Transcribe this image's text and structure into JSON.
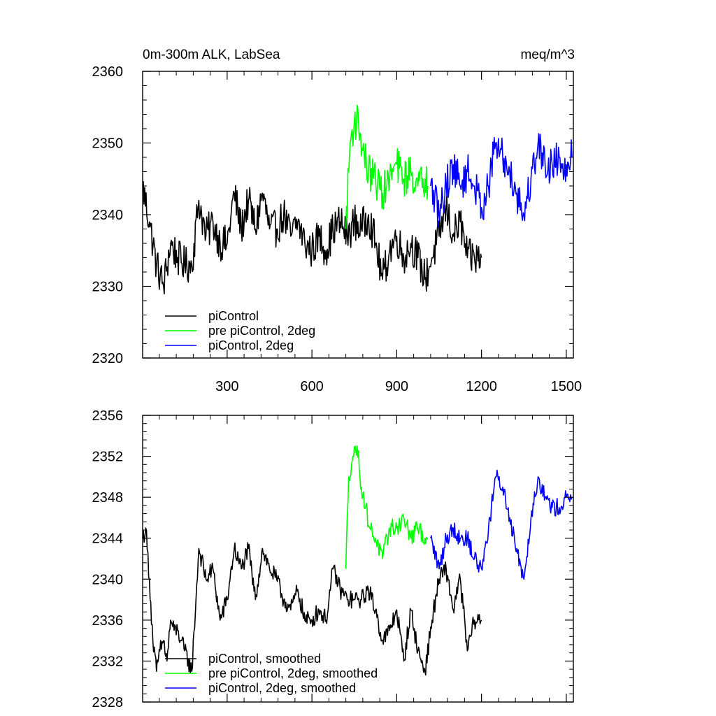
{
  "chart_data": [
    {
      "type": "line",
      "title": "0m-300m ALK, LabSea",
      "units": "meq/m^3",
      "xlabel": "",
      "ylabel": "",
      "xlim": [
        1,
        1525
      ],
      "ylim": [
        2320,
        2360
      ],
      "xticks": [
        300,
        600,
        900,
        1200,
        1500
      ],
      "xtick_labels": [
        "300",
        "600",
        "900",
        "1200",
        "1500"
      ],
      "yticks": [
        2320,
        2330,
        2340,
        2350,
        2360
      ],
      "ytick_labels": [
        "2320",
        "2330",
        "2340",
        "2350",
        "2360"
      ],
      "legend_position": "bottom-left",
      "series": [
        {
          "name": "piControl",
          "color": "#000000",
          "x": [
            1,
            25,
            50,
            75,
            100,
            125,
            150,
            175,
            200,
            225,
            250,
            275,
            300,
            325,
            350,
            375,
            400,
            425,
            450,
            475,
            500,
            525,
            550,
            575,
            600,
            625,
            650,
            675,
            700,
            725,
            750,
            775,
            800,
            825,
            850,
            875,
            900,
            925,
            950,
            975,
            1000,
            1025,
            1050,
            1075,
            1100,
            1125,
            1150,
            1175,
            1200
          ],
          "values": [
            2344,
            2339,
            2333,
            2330,
            2336,
            2334,
            2333,
            2333,
            2342,
            2337,
            2339,
            2336,
            2336,
            2343,
            2338,
            2342,
            2338,
            2343,
            2338,
            2338,
            2340,
            2337,
            2339,
            2336,
            2335,
            2337,
            2335,
            2338,
            2339,
            2337,
            2339,
            2338,
            2340,
            2336,
            2331,
            2335,
            2337,
            2334,
            2336,
            2334,
            2331,
            2334,
            2337,
            2341,
            2337,
            2339,
            2334,
            2334,
            2334
          ]
        },
        {
          "name": "pre piControl, 2deg",
          "color": "#00ff00",
          "x": [
            720,
            735,
            750,
            765,
            780,
            800,
            825,
            850,
            875,
            900,
            925,
            950,
            975,
            1000,
            1010
          ],
          "values": [
            2338,
            2350,
            2353,
            2353,
            2349,
            2346,
            2345,
            2343,
            2345,
            2347,
            2345,
            2346,
            2344,
            2345,
            2344
          ]
        },
        {
          "name": "piControl, 2deg",
          "color": "#0000ff",
          "x": [
            1020,
            1050,
            1075,
            1100,
            1125,
            1150,
            1175,
            1200,
            1225,
            1250,
            1275,
            1300,
            1325,
            1350,
            1375,
            1400,
            1425,
            1450,
            1475,
            1500,
            1520
          ],
          "values": [
            2344,
            2340,
            2344,
            2347,
            2344,
            2346,
            2344,
            2341,
            2344,
            2350,
            2348,
            2346,
            2343,
            2340,
            2345,
            2350,
            2347,
            2347,
            2348,
            2347,
            2348
          ]
        }
      ]
    },
    {
      "type": "line",
      "title": "",
      "xlabel": "",
      "ylabel": "",
      "xlim": [
        1,
        1525
      ],
      "ylim": [
        2328,
        2356
      ],
      "xticks": [
        300,
        600,
        900,
        1200,
        1500
      ],
      "xtick_labels": [],
      "yticks": [
        2328,
        2332,
        2336,
        2340,
        2344,
        2348,
        2352,
        2356
      ],
      "ytick_labels": [
        "2328",
        "2332",
        "2336",
        "2340",
        "2344",
        "2348",
        "2352",
        "2356"
      ],
      "legend_position": "bottom-left",
      "series": [
        {
          "name": "piControl, smoothed",
          "color": "#000000",
          "x": [
            1,
            12,
            25,
            37,
            50,
            62,
            75,
            87,
            100,
            112,
            125,
            137,
            150,
            175,
            200,
            225,
            250,
            275,
            300,
            325,
            350,
            375,
            400,
            425,
            450,
            475,
            500,
            525,
            550,
            575,
            600,
            625,
            650,
            675,
            700,
            725,
            750,
            775,
            800,
            825,
            850,
            875,
            900,
            925,
            950,
            975,
            1000,
            1025,
            1050,
            1075,
            1100,
            1125,
            1150,
            1175,
            1200
          ],
          "values": [
            2344,
            2345,
            2340,
            2334,
            2331,
            2333,
            2334,
            2332,
            2336,
            2335,
            2335,
            2334,
            2333,
            2331,
            2343,
            2340,
            2341,
            2336,
            2338,
            2343,
            2341,
            2343,
            2338,
            2343,
            2341,
            2340,
            2338,
            2337,
            2339,
            2336,
            2336,
            2337,
            2336,
            2341,
            2339,
            2338,
            2338,
            2338,
            2339,
            2337,
            2334,
            2335,
            2337,
            2332,
            2337,
            2333,
            2331,
            2336,
            2340,
            2341,
            2337,
            2340,
            2333,
            2336,
            2336
          ]
        },
        {
          "name": "pre piControl, 2deg, smoothed",
          "color": "#00ff00",
          "x": [
            720,
            730,
            745,
            760,
            775,
            790,
            805,
            825,
            850,
            875,
            900,
            925,
            950,
            975,
            1000,
            1010
          ],
          "values": [
            2341,
            2350,
            2352,
            2353,
            2349,
            2347,
            2345,
            2344,
            2342,
            2345,
            2345,
            2346,
            2344,
            2345,
            2344,
            2344
          ]
        },
        {
          "name": "piControl, 2deg, smoothed",
          "color": "#0000ff",
          "x": [
            1020,
            1050,
            1075,
            1100,
            1125,
            1150,
            1175,
            1200,
            1225,
            1250,
            1275,
            1300,
            1325,
            1350,
            1375,
            1400,
            1425,
            1450,
            1475,
            1500,
            1520
          ],
          "values": [
            2344,
            2341,
            2344,
            2345,
            2344,
            2344,
            2342,
            2341,
            2345,
            2350,
            2349,
            2346,
            2343,
            2340,
            2346,
            2350,
            2348,
            2347,
            2347,
            2348,
            2348
          ]
        }
      ]
    }
  ]
}
